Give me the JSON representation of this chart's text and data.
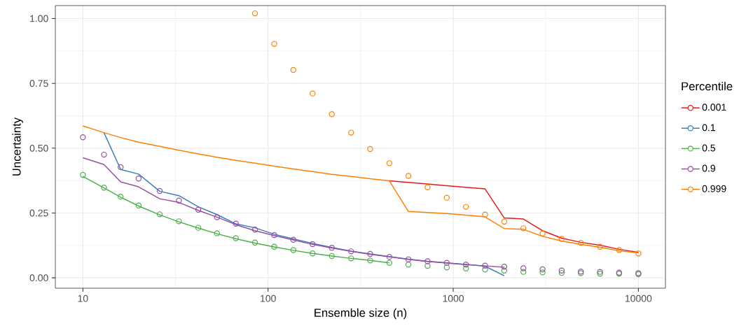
{
  "chart_data": {
    "type": "line",
    "xlabel": "Ensemble size (n)",
    "ylabel": "Uncertainty",
    "legend_title": "Percentile",
    "legend": "right",
    "grid": true,
    "log": "x",
    "xlim": [
      7.1,
      14000
    ],
    "ylim": [
      -0.04,
      1.05
    ],
    "xticks": [
      10,
      100,
      1000,
      10000
    ],
    "yticks": [
      {
        "value": 0,
        "label": "0.00"
      },
      {
        "value": 0.25,
        "label": "0.25"
      },
      {
        "value": 0.5,
        "label": "0.50"
      },
      {
        "value": 0.75,
        "label": "0.75"
      },
      {
        "value": 1,
        "label": "1.00"
      }
    ],
    "x": [
      10,
      13,
      16,
      20,
      26,
      33,
      42,
      53,
      67,
      85,
      108,
      137,
      174,
      221,
      281,
      356,
      452,
      573,
      727,
      923,
      1171,
      1486,
      1886,
      2393,
      3037,
      3853,
      4889,
      6204,
      7872,
      10000
    ],
    "series": [
      {
        "name": "0.001",
        "color": "#e41a1c",
        "values": [
          null,
          null,
          null,
          null,
          null,
          null,
          null,
          null,
          null,
          null,
          null,
          null,
          null,
          null,
          null,
          null,
          0.374,
          0.368,
          0.362,
          0.355,
          0.349,
          0.343,
          0.231,
          0.227,
          0.182,
          0.153,
          0.137,
          0.126,
          0.11,
          0.098
        ]
      },
      {
        "name": "0.1",
        "color": "#377eb8",
        "values": [
          null,
          0.56,
          0.418,
          0.4,
          0.334,
          0.317,
          0.274,
          0.244,
          0.208,
          0.193,
          0.168,
          0.15,
          0.133,
          0.117,
          0.103,
          0.092,
          0.082,
          0.072,
          0.064,
          0.058,
          0.052,
          0.045,
          0.008,
          null,
          null,
          null,
          null,
          null,
          null,
          null
        ]
      },
      {
        "name": "0.5",
        "color": "#4daf4a",
        "values": [
          0.391,
          0.347,
          0.311,
          0.277,
          0.243,
          0.216,
          0.192,
          0.17,
          0.151,
          0.134,
          0.119,
          0.106,
          0.094,
          0.084,
          0.075,
          0.067,
          0.058,
          null,
          null,
          null,
          null,
          null,
          null,
          null,
          null,
          null,
          null,
          null,
          null,
          null
        ]
      },
      {
        "name": "0.9",
        "color": "#984ea3",
        "values": [
          0.463,
          0.437,
          0.37,
          0.351,
          0.305,
          0.291,
          0.26,
          0.234,
          0.205,
          0.182,
          0.163,
          0.146,
          0.129,
          0.115,
          0.102,
          0.091,
          0.081,
          0.071,
          0.063,
          0.057,
          0.051,
          0.046,
          0.041,
          null,
          null,
          null,
          null,
          null,
          null,
          null
        ]
      },
      {
        "name": "0.999",
        "color": "#ff7f00",
        "values": [
          0.586,
          0.56,
          0.541,
          0.523,
          0.507,
          0.492,
          0.478,
          0.465,
          0.453,
          0.442,
          0.431,
          0.42,
          0.41,
          0.399,
          0.391,
          0.382,
          0.374,
          0.256,
          0.252,
          0.248,
          0.242,
          0.235,
          0.19,
          0.187,
          0.16,
          0.142,
          0.129,
          0.118,
          0.104,
          0.096
        ]
      },
      {
        "color": "#4daf4a",
        "type": "scatter",
        "marker": "circle",
        "values": [
          0.397,
          0.348,
          0.313,
          0.279,
          0.245,
          0.218,
          0.193,
          0.172,
          0.153,
          0.136,
          0.12,
          0.107,
          0.094,
          0.084,
          0.075,
          0.067,
          0.058,
          0.051,
          0.046,
          0.04,
          0.036,
          0.032,
          0.028,
          0.023,
          0.021,
          0.019,
          0.018,
          0.016,
          0.016,
          0.014
        ]
      },
      {
        "color": "#984ea3",
        "type": "scatter",
        "marker": "circle",
        "values": [
          0.542,
          0.475,
          0.427,
          0.383,
          0.335,
          0.298,
          0.263,
          0.234,
          0.209,
          0.186,
          0.165,
          0.147,
          0.13,
          0.116,
          0.102,
          0.092,
          0.081,
          0.071,
          0.064,
          0.058,
          0.051,
          0.047,
          0.043,
          0.037,
          0.033,
          0.028,
          0.024,
          0.023,
          0.02,
          0.018
        ]
      },
      {
        "color": "#ff7f00",
        "type": "scatter",
        "marker": "circle",
        "values": [
          null,
          null,
          null,
          null,
          null,
          null,
          null,
          null,
          null,
          1.02,
          0.902,
          0.802,
          0.711,
          0.631,
          0.56,
          0.497,
          0.442,
          0.393,
          0.349,
          0.309,
          0.274,
          0.244,
          0.217,
          0.191,
          0.171,
          0.15,
          0.135,
          0.12,
          0.107,
          0.094
        ]
      }
    ]
  }
}
